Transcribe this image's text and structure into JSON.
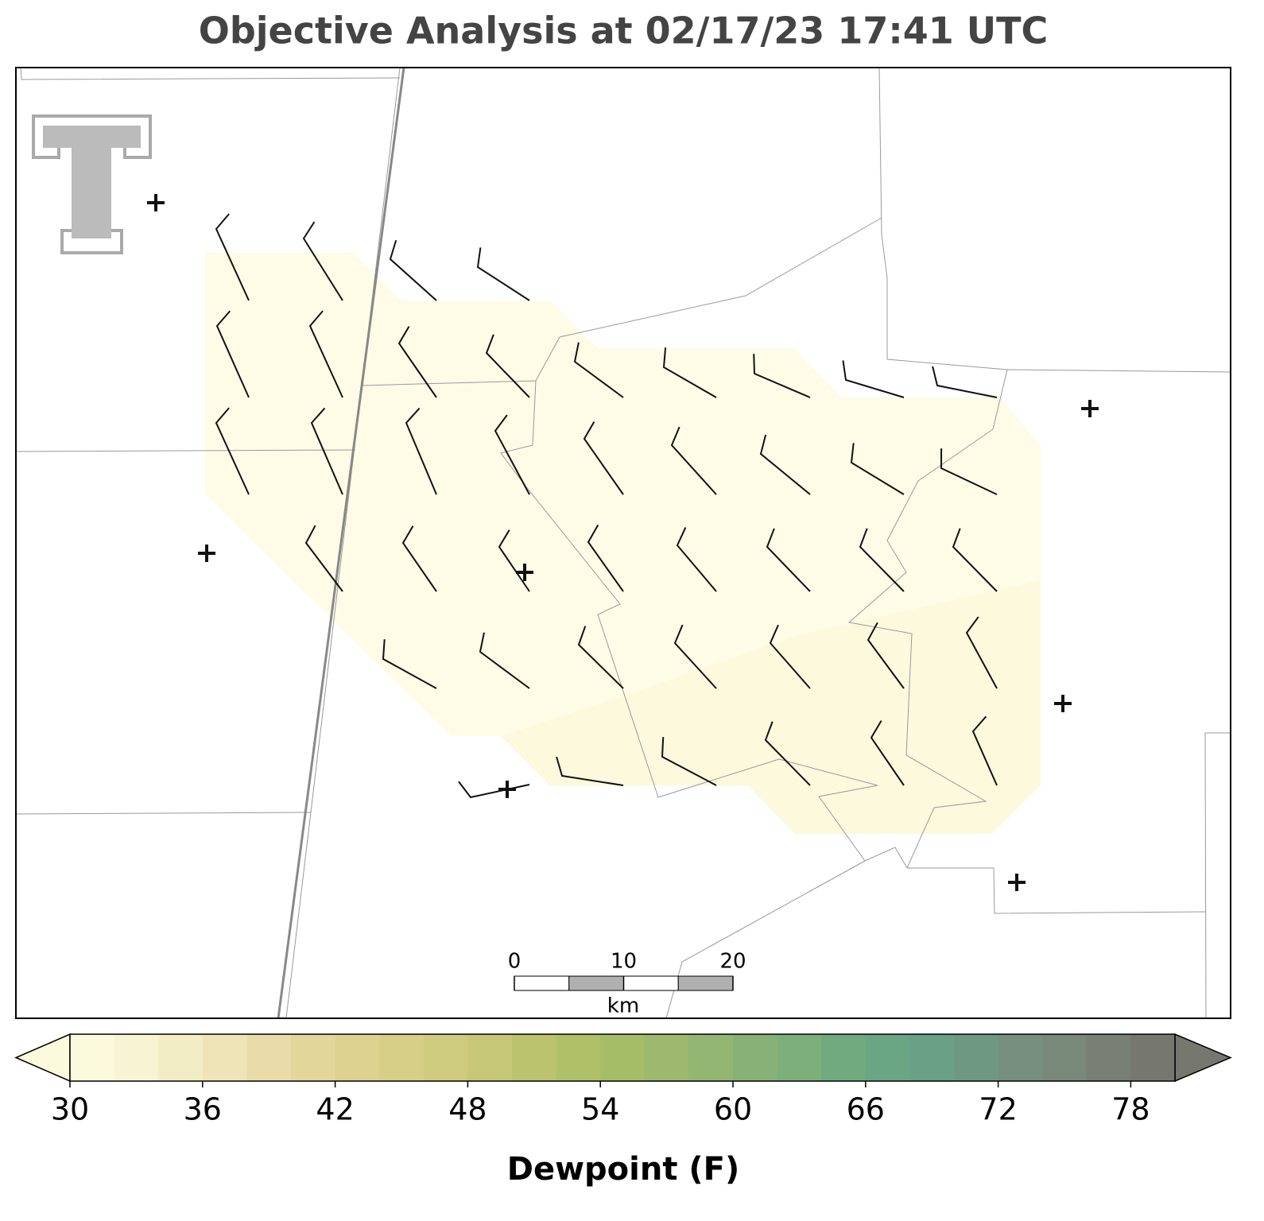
{
  "title": "Objective Analysis at 02/17/23 17:41 UTC",
  "scale_bar": {
    "ticks": [
      0,
      10,
      20
    ],
    "unit": "km"
  },
  "colorbar": {
    "label": "Dewpoint (F)",
    "range": [
      30,
      80
    ],
    "ticks": [
      30,
      36,
      42,
      48,
      54,
      60,
      66,
      72,
      78
    ],
    "colors": [
      "#fcfadd",
      "#f8f4d3",
      "#f3edc6",
      "#eee4b7",
      "#e9dca8",
      "#e3d69b",
      "#ddd290",
      "#d7cf87",
      "#cfcb7e",
      "#c6c777",
      "#bbc36f",
      "#afc068",
      "#a6bd68",
      "#9db96d",
      "#93b673",
      "#88b177",
      "#7daf7b",
      "#72aa80",
      "#6aa584",
      "#69a086",
      "#6f9882",
      "#768f7e",
      "#788879",
      "#787f74",
      "#767870"
    ]
  }
}
